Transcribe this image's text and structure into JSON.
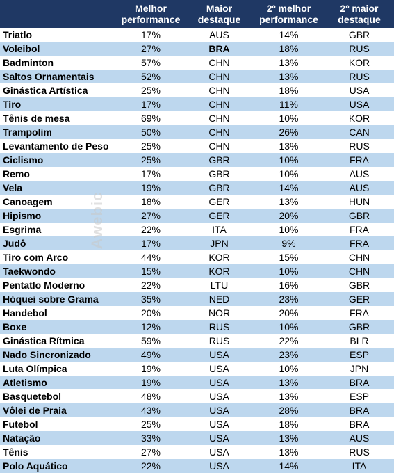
{
  "chart_data": {
    "type": "table",
    "columns": [
      "",
      "Melhor performance",
      "Maior destaque",
      "2º melhor performance",
      "2º maior destaque"
    ],
    "rows": [
      [
        "Triatlo",
        "17%",
        "AUS",
        "14%",
        "GBR"
      ],
      [
        "Voleibol",
        "27%",
        "BRA",
        "18%",
        "RUS"
      ],
      [
        "Badminton",
        "57%",
        "CHN",
        "13%",
        "KOR"
      ],
      [
        "Saltos Ornamentais",
        "52%",
        "CHN",
        "13%",
        "RUS"
      ],
      [
        "Ginástica Artística",
        "25%",
        "CHN",
        "18%",
        "USA"
      ],
      [
        "Tiro",
        "17%",
        "CHN",
        "11%",
        "USA"
      ],
      [
        "Tênis de mesa",
        "69%",
        "CHN",
        "10%",
        "KOR"
      ],
      [
        "Trampolim",
        "50%",
        "CHN",
        "26%",
        "CAN"
      ],
      [
        "Levantamento de Peso",
        "25%",
        "CHN",
        "13%",
        "RUS"
      ],
      [
        "Ciclismo",
        "25%",
        "GBR",
        "10%",
        "FRA"
      ],
      [
        "Remo",
        "17%",
        "GBR",
        "10%",
        "AUS"
      ],
      [
        "Vela",
        "19%",
        "GBR",
        "14%",
        "AUS"
      ],
      [
        "Canoagem",
        "18%",
        "GER",
        "13%",
        "HUN"
      ],
      [
        "Hipismo",
        "27%",
        "GER",
        "20%",
        "GBR"
      ],
      [
        "Esgrima",
        "22%",
        "ITA",
        "10%",
        "FRA"
      ],
      [
        "Judô",
        "17%",
        "JPN",
        "9%",
        "FRA"
      ],
      [
        "Tiro com Arco",
        "44%",
        "KOR",
        "15%",
        "CHN"
      ],
      [
        "Taekwondo",
        "15%",
        "KOR",
        "10%",
        "CHN"
      ],
      [
        "Pentatlo Moderno",
        "22%",
        "LTU",
        "16%",
        "GBR"
      ],
      [
        "Hóquei sobre Grama",
        "35%",
        "NED",
        "23%",
        "GER"
      ],
      [
        "Handebol",
        "20%",
        "NOR",
        "20%",
        "FRA"
      ],
      [
        "Boxe",
        "12%",
        "RUS",
        "10%",
        "GBR"
      ],
      [
        "Ginástica Rítmica",
        "59%",
        "RUS",
        "22%",
        "BLR"
      ],
      [
        "Nado Sincronizado",
        "49%",
        "USA",
        "23%",
        "ESP"
      ],
      [
        "Luta Olímpica",
        "19%",
        "USA",
        "10%",
        "JPN"
      ],
      [
        "Atletismo",
        "19%",
        "USA",
        "13%",
        "BRA"
      ],
      [
        "Basquetebol",
        "48%",
        "USA",
        "13%",
        "ESP"
      ],
      [
        "Vôlei de Praia",
        "43%",
        "USA",
        "28%",
        "BRA"
      ],
      [
        "Futebol",
        "25%",
        "USA",
        "18%",
        "BRA"
      ],
      [
        "Natação",
        "33%",
        "USA",
        "13%",
        "AUS"
      ],
      [
        "Tênis",
        "27%",
        "USA",
        "13%",
        "RUS"
      ],
      [
        "Polo Aquático",
        "22%",
        "USA",
        "14%",
        "ITA"
      ]
    ],
    "emphasis": {
      "row": "Voleibol",
      "column": 2,
      "value": "BRA"
    }
  },
  "header": {
    "melhor_line1": "Melhor",
    "melhor_line2": "performance",
    "maior_line1": "Maior",
    "maior_line2": "destaque",
    "melhor2_line1": "2º melhor",
    "melhor2_line2": "performance",
    "maior2_line1": "2º maior",
    "maior2_line2": "destaque"
  },
  "watermark": "Awebic",
  "colors": {
    "header_bg": "#1f3864",
    "header_text": "#ffffff",
    "stripe": "#bdd7ee",
    "row_bg": "#ffffff"
  }
}
